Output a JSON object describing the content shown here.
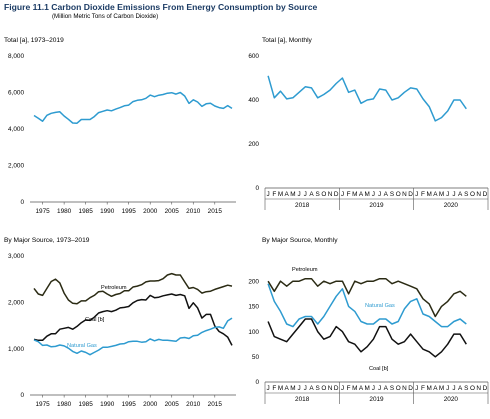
{
  "figure": {
    "title": "Figure 11.1  Carbon Dioxide Emissions From Energy Consumption by Source",
    "subtitle": "(Million Metric Tons of Carbon Dioxide)"
  },
  "colors": {
    "total": "#2e9bd0",
    "petroleum": "#2b2b14",
    "coal": "#111111",
    "natural_gas": "#2e9bd0",
    "axis": "#555555"
  },
  "chart_data": [
    {
      "type": "line",
      "title": "Total [a], 1973–2019",
      "ylim": [
        0,
        8000
      ],
      "y_ticks": [
        0,
        2000,
        4000,
        6000,
        8000
      ],
      "y_tick_labels": [
        "0",
        "2,000",
        "4,000",
        "6,000",
        "8,000"
      ],
      "x_tick_labels": [
        "1975",
        "1980",
        "1985",
        "1990",
        "1995",
        "2000",
        "2005",
        "2010",
        "2015"
      ],
      "x_ticks": [
        1975,
        1980,
        1985,
        1990,
        1995,
        2000,
        2005,
        2010,
        2015
      ],
      "xlim": [
        1973,
        2019
      ],
      "grid": false,
      "series": [
        {
          "color": "#2e9bd0",
          "x": [
            1973,
            1974,
            1975,
            1976,
            1977,
            1978,
            1979,
            1980,
            1981,
            1982,
            1983,
            1984,
            1985,
            1986,
            1987,
            1988,
            1989,
            1990,
            1991,
            1992,
            1993,
            1994,
            1995,
            1996,
            1997,
            1998,
            1999,
            2000,
            2001,
            2002,
            2003,
            2004,
            2005,
            2006,
            2007,
            2008,
            2009,
            2010,
            2011,
            2012,
            2013,
            2014,
            2015,
            2016,
            2017,
            2018,
            2019
          ],
          "values": [
            4740,
            4590,
            4430,
            4750,
            4860,
            4910,
            4940,
            4710,
            4530,
            4330,
            4320,
            4520,
            4520,
            4520,
            4680,
            4900,
            4970,
            5040,
            5000,
            5090,
            5170,
            5270,
            5310,
            5500,
            5570,
            5600,
            5680,
            5860,
            5770,
            5850,
            5890,
            5960,
            5990,
            5910,
            6000,
            5810,
            5400,
            5600,
            5480,
            5240,
            5380,
            5410,
            5260,
            5170,
            5130,
            5280,
            5130
          ]
        }
      ]
    },
    {
      "type": "line",
      "title": "Total [a], Monthly",
      "ylim": [
        0,
        600
      ],
      "y_ticks": [
        0,
        200,
        400,
        600
      ],
      "y_tick_labels": [
        "0",
        "200",
        "400",
        "600"
      ],
      "month_labels": [
        "J",
        "F",
        "M",
        "A",
        "M",
        "J",
        "J",
        "A",
        "S",
        "O",
        "N",
        "D",
        "J",
        "F",
        "M",
        "A",
        "M",
        "J",
        "J",
        "A",
        "S",
        "O",
        "N",
        "D",
        "J",
        "F",
        "M",
        "A",
        "M",
        "J",
        "J",
        "A",
        "S",
        "O",
        "N",
        "D"
      ],
      "year_labels": [
        "2018",
        "2019",
        "2020"
      ],
      "grid": false,
      "series": [
        {
          "color": "#2e9bd0",
          "values": [
            510,
            410,
            440,
            405,
            410,
            435,
            460,
            455,
            410,
            425,
            445,
            475,
            500,
            435,
            445,
            385,
            400,
            405,
            450,
            445,
            400,
            410,
            435,
            455,
            450,
            405,
            370,
            305,
            320,
            350,
            400,
            400,
            360
          ]
        }
      ]
    },
    {
      "type": "line",
      "title": "By Major Source, 1973–2019",
      "ylim": [
        0,
        3000
      ],
      "y_ticks": [
        0,
        1000,
        2000,
        3000
      ],
      "y_tick_labels": [
        "0",
        "1,000",
        "2,000",
        "3,000"
      ],
      "x_tick_labels": [
        "1975",
        "1980",
        "1985",
        "1990",
        "1995",
        "2000",
        "2005",
        "2010",
        "2015"
      ],
      "x_ticks": [
        1975,
        1980,
        1985,
        1990,
        1995,
        2000,
        2005,
        2010,
        2015
      ],
      "xlim": [
        1973,
        2019
      ],
      "grid": false,
      "series": [
        {
          "name": "Petroleum",
          "color": "#2b2b14",
          "x": [
            1973,
            1974,
            1975,
            1976,
            1977,
            1978,
            1979,
            1980,
            1981,
            1982,
            1983,
            1984,
            1985,
            1986,
            1987,
            1988,
            1989,
            1990,
            1991,
            1992,
            1993,
            1994,
            1995,
            1996,
            1997,
            1998,
            1999,
            2000,
            2001,
            2002,
            2003,
            2004,
            2005,
            2006,
            2007,
            2008,
            2009,
            2010,
            2011,
            2012,
            2013,
            2014,
            2015,
            2016,
            2017,
            2018,
            2019
          ],
          "values": [
            2300,
            2180,
            2150,
            2300,
            2450,
            2500,
            2420,
            2200,
            2050,
            1980,
            1970,
            2030,
            2030,
            2100,
            2150,
            2230,
            2240,
            2180,
            2130,
            2170,
            2190,
            2250,
            2250,
            2330,
            2350,
            2380,
            2440,
            2460,
            2460,
            2470,
            2510,
            2590,
            2620,
            2590,
            2590,
            2440,
            2300,
            2320,
            2280,
            2200,
            2230,
            2240,
            2280,
            2310,
            2340,
            2370,
            2350
          ]
        },
        {
          "name": "Coal [b]",
          "color": "#111111",
          "x": [
            1973,
            1974,
            1975,
            1976,
            1977,
            1978,
            1979,
            1980,
            1981,
            1982,
            1983,
            1984,
            1985,
            1986,
            1987,
            1988,
            1989,
            1990,
            1991,
            1992,
            1993,
            1994,
            1995,
            1996,
            1997,
            1998,
            1999,
            2000,
            2001,
            2002,
            2003,
            2004,
            2005,
            2006,
            2007,
            2008,
            2009,
            2010,
            2011,
            2012,
            2013,
            2014,
            2015,
            2016,
            2017,
            2018,
            2019
          ],
          "values": [
            1200,
            1180,
            1180,
            1270,
            1320,
            1320,
            1420,
            1440,
            1460,
            1420,
            1480,
            1560,
            1620,
            1610,
            1680,
            1770,
            1800,
            1820,
            1800,
            1830,
            1880,
            1890,
            1910,
            1990,
            2040,
            2060,
            2050,
            2150,
            2100,
            2110,
            2140,
            2160,
            2180,
            2150,
            2170,
            2140,
            1870,
            1990,
            1880,
            1660,
            1740,
            1740,
            1490,
            1370,
            1320,
            1250,
            1070
          ]
        },
        {
          "name": "Natural Gas",
          "color": "#2e9bd0",
          "x": [
            1973,
            1974,
            1975,
            1976,
            1977,
            1978,
            1979,
            1980,
            1981,
            1982,
            1983,
            1984,
            1985,
            1986,
            1987,
            1988,
            1989,
            1990,
            1991,
            1992,
            1993,
            1994,
            1995,
            1996,
            1997,
            1998,
            1999,
            2000,
            2001,
            2002,
            2003,
            2004,
            2005,
            2006,
            2007,
            2008,
            2009,
            2010,
            2011,
            2012,
            2013,
            2014,
            2015,
            2016,
            2017,
            2018,
            2019
          ],
          "values": [
            1190,
            1150,
            1070,
            1080,
            1040,
            1050,
            1080,
            1060,
            1010,
            940,
            900,
            950,
            920,
            870,
            920,
            970,
            1030,
            1030,
            1050,
            1070,
            1100,
            1110,
            1150,
            1160,
            1160,
            1140,
            1150,
            1210,
            1170,
            1200,
            1180,
            1180,
            1170,
            1160,
            1230,
            1240,
            1220,
            1280,
            1290,
            1350,
            1390,
            1420,
            1460,
            1470,
            1440,
            1600,
            1660
          ]
        }
      ]
    },
    {
      "type": "line",
      "title": "By Major Source, Monthly",
      "ylim": [
        0,
        250
      ],
      "y_ticks": [
        0,
        50,
        100,
        150,
        200
      ],
      "y_tick_labels": [
        "0",
        "50",
        "100",
        "150",
        "200"
      ],
      "month_labels": [
        "J",
        "F",
        "M",
        "A",
        "M",
        "J",
        "J",
        "A",
        "S",
        "O",
        "N",
        "D",
        "J",
        "F",
        "M",
        "A",
        "M",
        "J",
        "J",
        "A",
        "S",
        "O",
        "N",
        "D",
        "J",
        "F",
        "M",
        "A",
        "M",
        "J",
        "J",
        "A",
        "S",
        "O",
        "N",
        "D"
      ],
      "year_labels": [
        "2018",
        "2019",
        "2020"
      ],
      "grid": false,
      "series": [
        {
          "name": "Petroleum",
          "color": "#2b2b14",
          "values": [
            200,
            180,
            200,
            190,
            200,
            200,
            205,
            205,
            190,
            200,
            195,
            200,
            200,
            175,
            200,
            195,
            200,
            200,
            205,
            205,
            195,
            200,
            195,
            190,
            185,
            165,
            155,
            130,
            150,
            160,
            175,
            180,
            170
          ]
        },
        {
          "name": "Natural Gas",
          "color": "#2e9bd0",
          "values": [
            195,
            160,
            140,
            115,
            110,
            125,
            130,
            130,
            115,
            130,
            150,
            170,
            185,
            150,
            140,
            120,
            115,
            115,
            125,
            125,
            115,
            120,
            145,
            160,
            165,
            135,
            130,
            120,
            110,
            110,
            120,
            125,
            115
          ]
        },
        {
          "name": "Coal [b]",
          "color": "#111111",
          "values": [
            120,
            90,
            85,
            80,
            95,
            110,
            125,
            125,
            100,
            85,
            90,
            110,
            100,
            80,
            75,
            60,
            70,
            85,
            110,
            110,
            85,
            75,
            80,
            95,
            80,
            65,
            60,
            50,
            60,
            75,
            95,
            95,
            75
          ]
        }
      ]
    }
  ]
}
